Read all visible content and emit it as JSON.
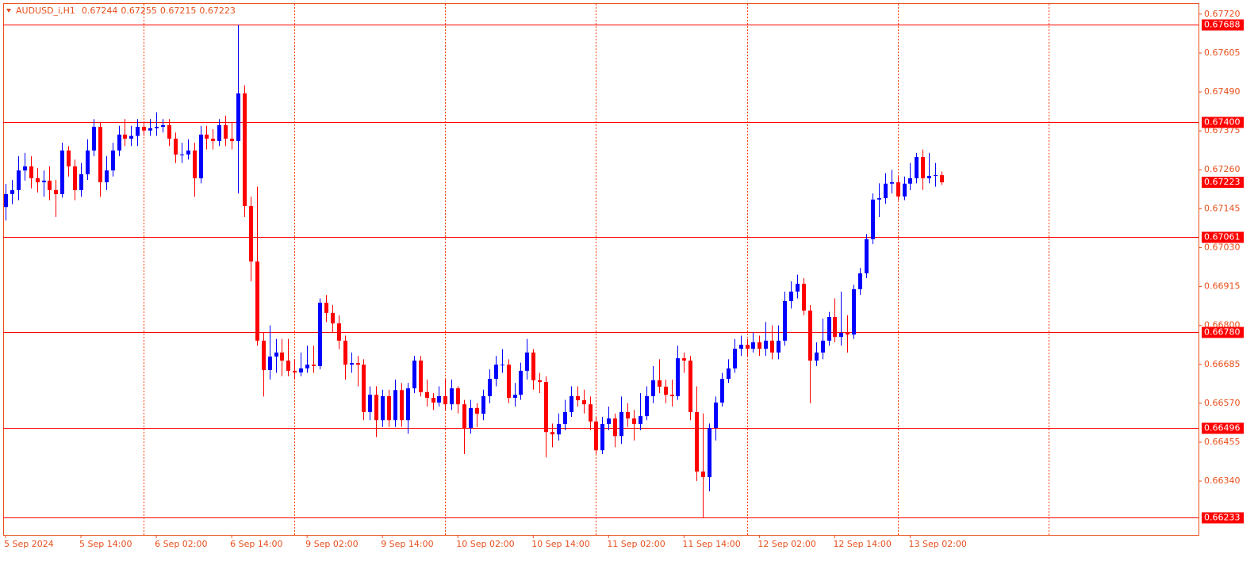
{
  "chart_data": {
    "type": "candlestick",
    "title": "AUDUSD_i,H1",
    "up_color": "#0000ff",
    "down_color": "#ff0000",
    "level_color": "#ff0000",
    "open": [
      0.6715,
      0.67188,
      0.672,
      0.67258,
      0.6727,
      0.67235,
      0.67223,
      0.67228,
      0.672,
      0.67188,
      0.67317,
      0.6727,
      0.672,
      0.67247,
      0.67317,
      0.67387,
      0.67223,
      0.67258,
      0.67317,
      0.67364,
      0.67352,
      0.6736,
      0.67387,
      0.67376,
      0.67383,
      0.67387,
      0.67392,
      0.67352,
      0.67305,
      0.67305,
      0.67317,
      0.67235,
      0.67364,
      0.67352,
      0.67345,
      0.67392,
      0.67352,
      0.67345,
      0.67486,
      0.67153,
      0.66989,
      0.66755,
      0.66668,
      0.66708,
      0.6672,
      0.66696,
      0.66666,
      0.66661,
      0.66673,
      0.66684,
      0.6668,
      0.66867,
      0.66837,
      0.66806,
      0.66755,
      0.66684,
      0.66689,
      0.66684,
      0.66544,
      0.66595,
      0.6652,
      0.66591,
      0.6652,
      0.66609,
      0.6652,
      0.66614,
      0.66696,
      0.66603,
      0.66586,
      0.66572,
      0.66591,
      0.66567,
      0.66614,
      0.66567,
      0.66497,
      0.66556,
      0.66539,
      0.66591,
      0.66642,
      0.66684,
      0.66684,
      0.66586,
      0.66595,
      0.66666,
      0.6672,
      0.66638,
      0.66633,
      0.66485,
      0.66478,
      0.66509,
      0.66544,
      0.66591,
      0.66579,
      0.66567,
      0.66516,
      0.66431,
      0.66509,
      0.66525,
      0.66473,
      0.66544,
      0.66525,
      0.66509,
      0.66532,
      0.66591,
      0.66638,
      0.66619,
      0.66595,
      0.66591,
      0.66703,
      0.66696,
      0.66544,
      0.66368,
      0.66352,
      0.66497,
      0.66572,
      0.66642,
      0.66673,
      0.66731,
      0.66743,
      0.66731,
      0.6675,
      0.66731,
      0.66755,
      0.6672,
      0.66755,
      0.66872,
      0.669,
      0.66923,
      0.66844,
      0.66696,
      0.6672,
      0.66755,
      0.66825,
      0.66766,
      0.66778,
      0.66773,
      0.66907,
      0.66954,
      0.67055,
      0.67172,
      0.67176,
      0.67219,
      0.67223,
      0.67181,
      0.67219,
      0.67235,
      0.67298,
      0.67235,
      0.67242,
      0.67244
    ],
    "high": [
      0.67218,
      0.6723,
      0.673,
      0.6731,
      0.673,
      0.67265,
      0.67258,
      0.6727,
      0.6723,
      0.6734,
      0.6733,
      0.6729,
      0.6728,
      0.6735,
      0.6741,
      0.674,
      0.673,
      0.6734,
      0.6739,
      0.6741,
      0.6739,
      0.6741,
      0.674,
      0.6741,
      0.6743,
      0.6741,
      0.6741,
      0.6737,
      0.6734,
      0.6735,
      0.6734,
      0.6739,
      0.6739,
      0.6738,
      0.6741,
      0.6742,
      0.674,
      0.67688,
      0.6751,
      0.6718,
      0.6721,
      0.6678,
      0.668,
      0.6676,
      0.6676,
      0.6676,
      0.667,
      0.6672,
      0.6674,
      0.6674,
      0.6688,
      0.6689,
      0.6686,
      0.6683,
      0.6677,
      0.6672,
      0.6671,
      0.667,
      0.6662,
      0.6662,
      0.6661,
      0.6661,
      0.6664,
      0.6663,
      0.6663,
      0.6671,
      0.6671,
      0.6664,
      0.666,
      0.6662,
      0.6664,
      0.6664,
      0.6662,
      0.6658,
      0.6658,
      0.6657,
      0.6661,
      0.6667,
      0.6671,
      0.6673,
      0.667,
      0.6663,
      0.6669,
      0.6676,
      0.6673,
      0.6666,
      0.6665,
      0.6651,
      0.6654,
      0.6658,
      0.6662,
      0.6662,
      0.6661,
      0.6659,
      0.6653,
      0.6653,
      0.6656,
      0.6654,
      0.6659,
      0.6657,
      0.6655,
      0.666,
      0.6662,
      0.6668,
      0.667,
      0.6664,
      0.6664,
      0.6674,
      0.6672,
      0.6671,
      0.6662,
      0.6654,
      0.6651,
      0.6659,
      0.6666,
      0.667,
      0.6676,
      0.6677,
      0.6676,
      0.6678,
      0.6677,
      0.6681,
      0.668,
      0.668,
      0.669,
      0.6693,
      0.6695,
      0.6694,
      0.6686,
      0.6675,
      0.6682,
      0.6684,
      0.6688,
      0.669,
      0.6683,
      0.6692,
      0.6697,
      0.6707,
      0.6719,
      0.6722,
      0.6725,
      0.6726,
      0.6724,
      0.6724,
      0.6728,
      0.6731,
      0.6732,
      0.6731,
      0.6728,
      0.67255
    ],
    "low": [
      0.6711,
      0.67158,
      0.6717,
      0.67228,
      0.67205,
      0.67193,
      0.6718,
      0.6717,
      0.6712,
      0.67178,
      0.6724,
      0.6717,
      0.6718,
      0.6723,
      0.673,
      0.6718,
      0.672,
      0.6724,
      0.673,
      0.6733,
      0.6733,
      0.6733,
      0.6736,
      0.6736,
      0.6736,
      0.6737,
      0.6733,
      0.6728,
      0.6728,
      0.6729,
      0.6718,
      0.6722,
      0.6732,
      0.6732,
      0.6733,
      0.6733,
      0.6732,
      0.6719,
      0.6712,
      0.6693,
      0.6674,
      0.6659,
      0.6664,
      0.6666,
      0.6665,
      0.6665,
      0.6664,
      0.6665,
      0.6666,
      0.6666,
      0.6667,
      0.6681,
      0.6678,
      0.6673,
      0.6664,
      0.6666,
      0.6662,
      0.6652,
      0.6652,
      0.6647,
      0.665,
      0.665,
      0.665,
      0.665,
      0.6648,
      0.666,
      0.6659,
      0.6656,
      0.6655,
      0.6656,
      0.6655,
      0.6655,
      0.6654,
      0.6642,
      0.6648,
      0.665,
      0.6652,
      0.6657,
      0.6662,
      0.6666,
      0.6657,
      0.6656,
      0.6658,
      0.6664,
      0.6661,
      0.666,
      0.6641,
      0.6644,
      0.6646,
      0.6649,
      0.6653,
      0.6656,
      0.6654,
      0.6649,
      0.6642,
      0.6642,
      0.6649,
      0.6644,
      0.6645,
      0.665,
      0.6646,
      0.6649,
      0.6652,
      0.6657,
      0.666,
      0.6657,
      0.6656,
      0.6658,
      0.6666,
      0.6652,
      0.6634,
      0.66233,
      0.6631,
      0.6646,
      0.6656,
      0.6663,
      0.6666,
      0.6671,
      0.6671,
      0.6672,
      0.6671,
      0.6671,
      0.667,
      0.667,
      0.6674,
      0.6685,
      0.6688,
      0.6683,
      0.6657,
      0.6668,
      0.667,
      0.6674,
      0.6675,
      0.6674,
      0.6672,
      0.6676,
      0.6689,
      0.6694,
      0.6704,
      0.6712,
      0.6716,
      0.6719,
      0.6717,
      0.6717,
      0.672,
      0.6722,
      0.672,
      0.6722,
      0.6721,
      0.67215
    ],
    "close": [
      0.67188,
      0.672,
      0.67258,
      0.6727,
      0.67235,
      0.67223,
      0.67228,
      0.672,
      0.67188,
      0.67317,
      0.6727,
      0.672,
      0.67247,
      0.67317,
      0.67387,
      0.67223,
      0.67258,
      0.67317,
      0.67364,
      0.67352,
      0.6736,
      0.67387,
      0.67376,
      0.67383,
      0.67387,
      0.67392,
      0.67352,
      0.67305,
      0.67305,
      0.67317,
      0.67235,
      0.67364,
      0.67352,
      0.67345,
      0.67392,
      0.67352,
      0.67345,
      0.67486,
      0.67153,
      0.66989,
      0.66755,
      0.66668,
      0.66708,
      0.6672,
      0.66696,
      0.66666,
      0.66661,
      0.66673,
      0.66684,
      0.6668,
      0.66867,
      0.66837,
      0.66806,
      0.66755,
      0.66684,
      0.66689,
      0.66684,
      0.66544,
      0.66595,
      0.6652,
      0.66591,
      0.6652,
      0.66609,
      0.6652,
      0.66614,
      0.66696,
      0.66603,
      0.66586,
      0.66572,
      0.66591,
      0.66567,
      0.66614,
      0.66567,
      0.66497,
      0.66556,
      0.66539,
      0.66591,
      0.66642,
      0.66684,
      0.66684,
      0.66586,
      0.66595,
      0.66666,
      0.6672,
      0.66638,
      0.66633,
      0.66485,
      0.66478,
      0.66509,
      0.66544,
      0.66591,
      0.66579,
      0.66567,
      0.66516,
      0.66431,
      0.66509,
      0.66525,
      0.66473,
      0.66544,
      0.66525,
      0.66509,
      0.66532,
      0.66591,
      0.66638,
      0.66619,
      0.66595,
      0.66591,
      0.66703,
      0.66696,
      0.66544,
      0.66368,
      0.66352,
      0.66497,
      0.66572,
      0.66642,
      0.66673,
      0.66731,
      0.66743,
      0.66731,
      0.6675,
      0.66731,
      0.66755,
      0.6672,
      0.66755,
      0.66872,
      0.669,
      0.66923,
      0.66844,
      0.66696,
      0.6672,
      0.66755,
      0.66825,
      0.66766,
      0.66778,
      0.66773,
      0.66907,
      0.66954,
      0.67055,
      0.67172,
      0.67176,
      0.67219,
      0.67223,
      0.67181,
      0.67219,
      0.67235,
      0.67298,
      0.67235,
      0.67242,
      0.67244,
      0.67223
    ],
    "xticks": [
      {
        "value": 0,
        "label": "5 Sep 2024"
      },
      {
        "value": 12,
        "label": "5 Sep 14:00"
      },
      {
        "value": 24,
        "label": "6 Sep 02:00"
      },
      {
        "value": 36,
        "label": "6 Sep 14:00"
      },
      {
        "value": 48,
        "label": "9 Sep 02:00"
      },
      {
        "value": 60,
        "label": "9 Sep 14:00"
      },
      {
        "value": 72,
        "label": "10 Sep 02:00"
      },
      {
        "value": 84,
        "label": "10 Sep 14:00"
      },
      {
        "value": 96,
        "label": "11 Sep 02:00"
      },
      {
        "value": 108,
        "label": "11 Sep 14:00"
      },
      {
        "value": 120,
        "label": "12 Sep 02:00"
      },
      {
        "value": 132,
        "label": "12 Sep 14:00"
      },
      {
        "value": 144,
        "label": "13 Sep 02:00"
      }
    ],
    "xgrid": [
      22,
      46,
      70,
      94,
      118,
      142,
      166
    ],
    "ylim": [
      0.66181,
      0.6775
    ],
    "yticks": [
      {
        "value": 0.6772,
        "label": "0.67720"
      },
      {
        "value": 0.67605,
        "label": "0.67605"
      },
      {
        "value": 0.6749,
        "label": "0.67490"
      },
      {
        "value": 0.67375,
        "label": "0.67375"
      },
      {
        "value": 0.6726,
        "label": "0.67260"
      },
      {
        "value": 0.67145,
        "label": "0.67145"
      },
      {
        "value": 0.6703,
        "label": "0.67030"
      },
      {
        "value": 0.66915,
        "label": "0.66915"
      },
      {
        "value": 0.668,
        "label": "0.66800"
      },
      {
        "value": 0.66685,
        "label": "0.66685"
      },
      {
        "value": 0.6657,
        "label": "0.66570"
      },
      {
        "value": 0.66455,
        "label": "0.66455"
      },
      {
        "value": 0.6634,
        "label": "0.66340"
      }
    ],
    "levels": [
      {
        "value": 0.67688,
        "label": "0.67688"
      },
      {
        "value": 0.674,
        "label": "0.67400"
      },
      {
        "value": 0.67061,
        "label": "0.67061"
      },
      {
        "value": 0.6678,
        "label": "0.66780"
      },
      {
        "value": 0.66496,
        "label": "0.66496"
      },
      {
        "value": 0.66233,
        "label": "0.66233"
      }
    ],
    "last_price": {
      "value": 0.67223,
      "label": "0.67223"
    }
  }
}
